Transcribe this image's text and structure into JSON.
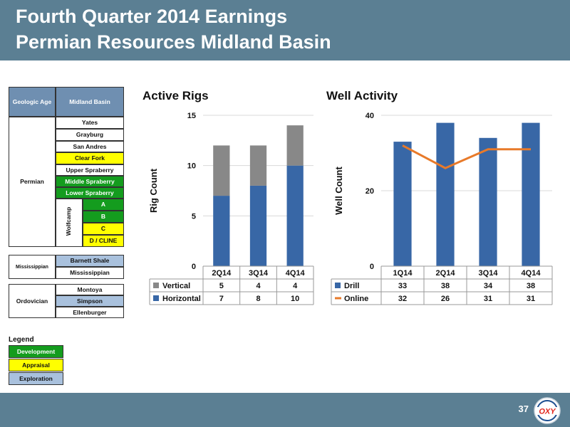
{
  "header": {
    "title_line1": "Fourth Quarter 2014 Earnings",
    "title_line2": "Permian Resources Midland Basin"
  },
  "footer": {
    "page_number": "37",
    "logo_text": "OXY"
  },
  "colors": {
    "brand": "#5b7f93",
    "table_header": "#6f8fb1",
    "development": "#149c1e",
    "appraisal": "#ffff00",
    "exploration": "#a9c1dd",
    "horizontal_bar": "#3867a6",
    "vertical_bar": "#888888",
    "drill_bar": "#3867a6",
    "online_line": "#e87a2a"
  },
  "strat_table": {
    "header_age": "Geologic Age",
    "header_basin": "Midland Basin",
    "periods": {
      "permian": "Permian",
      "mississippian": "Mississippian",
      "ordovician": "Ordovician"
    },
    "wolfcamp_label": "Wolfcamp",
    "formations": {
      "yates": "Yates",
      "grayburg": "Grayburg",
      "san_andres": "San Andres",
      "clear_fork": "Clear Fork",
      "upper_spraberry": "Upper Spraberry",
      "middle_spraberry": "Middle Spraberry",
      "lower_spraberry": "Lower Spraberry",
      "wolfcamp_a": "A",
      "wolfcamp_b": "B",
      "wolfcamp_c": "C",
      "wolfcamp_d": "D / CLINE",
      "barnett": "Barnett Shale",
      "mississippian": "Mississippian",
      "montoya": "Montoya",
      "simpson": "Simpson",
      "ellenburger": "Ellenburger"
    }
  },
  "legend": {
    "title": "Legend",
    "development": "Development",
    "appraisal": "Appraisal",
    "exploration": "Exploration"
  },
  "chart_data": [
    {
      "type": "bar",
      "stacked": true,
      "title": "Active Rigs",
      "ylabel": "Rig Count",
      "categories": [
        "2Q14",
        "3Q14",
        "4Q14"
      ],
      "ylim": [
        0,
        15
      ],
      "yticks": [
        0,
        5,
        10,
        15
      ],
      "grid": true,
      "series": [
        {
          "name": "Vertical",
          "values": [
            5,
            4,
            4
          ],
          "color": "#888888"
        },
        {
          "name": "Horizontal",
          "values": [
            7,
            8,
            10
          ],
          "color": "#3867a6"
        }
      ],
      "legend_placement": "data-table-below"
    },
    {
      "type": "bar",
      "title": "Well Activity",
      "ylabel": "Well Count",
      "categories": [
        "1Q14",
        "2Q14",
        "3Q14",
        "4Q14"
      ],
      "ylim": [
        0,
        40
      ],
      "yticks": [
        0,
        20,
        40
      ],
      "grid": true,
      "series": [
        {
          "name": "Drill",
          "kind": "bar",
          "values": [
            33,
            38,
            34,
            38
          ],
          "color": "#3867a6"
        },
        {
          "name": "Online",
          "kind": "line",
          "values": [
            32,
            26,
            31,
            31
          ],
          "color": "#e87a2a"
        }
      ],
      "legend_placement": "data-table-below"
    }
  ]
}
